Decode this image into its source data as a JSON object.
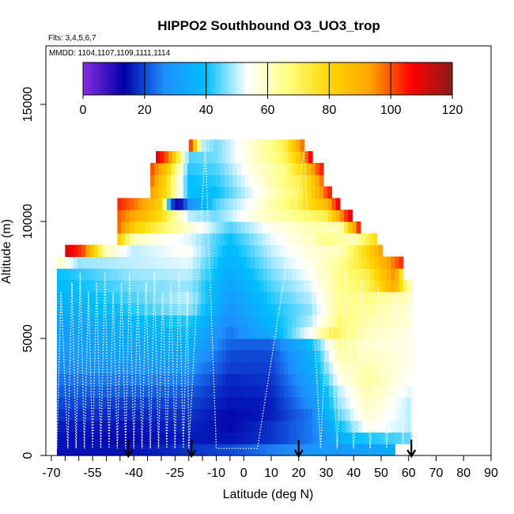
{
  "chart_data": {
    "type": "heatmap",
    "title": "HIPPO2 Southbound O3_UO3_trop",
    "subtitle_flights": "Flts: 3,4,5,6,7",
    "subtitle_dates": "MMDD: 1104,1107,1109,1111,1114",
    "xlabel": "Latitude (deg N)",
    "ylabel": "Altitude (m)",
    "xlim": [
      -72,
      90
    ],
    "ylim": [
      0,
      17500
    ],
    "x_ticks": [
      -70,
      -55,
      -40,
      -25,
      -10,
      0,
      10,
      20,
      30,
      40,
      50,
      60,
      70,
      80,
      90
    ],
    "x_tick_labels": [
      "-70",
      "-55",
      "-40",
      "-25",
      "-10",
      "0",
      "10",
      "20",
      "30",
      "40",
      "50",
      "60",
      "70",
      "80",
      "90"
    ],
    "x_minor_ticks": [
      -65,
      -60,
      -50,
      -45,
      -35,
      -30,
      -20,
      -15,
      -5
    ],
    "y_ticks": [
      0,
      5000,
      10000,
      15000
    ],
    "y_tick_labels": [
      "0",
      "5000",
      "10000",
      "15000"
    ],
    "colorbar": {
      "range": [
        0,
        120
      ],
      "ticks": [
        0,
        20,
        40,
        60,
        80,
        100,
        120
      ],
      "tick_labels": [
        "0",
        "20",
        "40",
        "60",
        "80",
        "100",
        "120"
      ],
      "colors": [
        "#8a2be2",
        "#0000aa",
        "#1e90ff",
        "#00bfff",
        "#ffffff",
        "#ffff80",
        "#ffd700",
        "#ffa500",
        "#ff0000",
        "#8b1a1a"
      ]
    },
    "arrow_latitudes": [
      -42,
      -19,
      20,
      61
    ],
    "layer_height_m": 500,
    "layers": [
      {
        "alt": 0,
        "lat_min": -68,
        "lat_max": 55,
        "ctrl": [
          [
            -68,
            15
          ],
          [
            -40,
            15
          ],
          [
            -20,
            18
          ],
          [
            -5,
            20
          ],
          [
            10,
            25
          ],
          [
            25,
            28
          ],
          [
            40,
            30
          ],
          [
            55,
            35
          ]
        ]
      },
      {
        "alt": 500,
        "lat_min": -68,
        "lat_max": 60,
        "ctrl": [
          [
            -68,
            15
          ],
          [
            -40,
            14
          ],
          [
            -20,
            16
          ],
          [
            -5,
            15
          ],
          [
            10,
            18
          ],
          [
            25,
            25
          ],
          [
            40,
            40
          ],
          [
            60,
            45
          ]
        ]
      },
      {
        "alt": 1000,
        "lat_min": -68,
        "lat_max": 60,
        "ctrl": [
          [
            -68,
            16
          ],
          [
            -40,
            15
          ],
          [
            -20,
            17
          ],
          [
            -5,
            14
          ],
          [
            10,
            18
          ],
          [
            25,
            25
          ],
          [
            35,
            40
          ],
          [
            45,
            55
          ],
          [
            60,
            50
          ]
        ]
      },
      {
        "alt": 1500,
        "lat_min": -68,
        "lat_max": 60,
        "ctrl": [
          [
            -68,
            18
          ],
          [
            -40,
            17
          ],
          [
            -20,
            18
          ],
          [
            -5,
            14
          ],
          [
            10,
            16
          ],
          [
            25,
            25
          ],
          [
            35,
            45
          ],
          [
            45,
            58
          ],
          [
            60,
            50
          ]
        ]
      },
      {
        "alt": 2000,
        "lat_min": -68,
        "lat_max": 60,
        "ctrl": [
          [
            -68,
            20
          ],
          [
            -40,
            19
          ],
          [
            -20,
            20
          ],
          [
            -5,
            15
          ],
          [
            10,
            16
          ],
          [
            25,
            28
          ],
          [
            35,
            48
          ],
          [
            45,
            60
          ],
          [
            60,
            50
          ]
        ]
      },
      {
        "alt": 2500,
        "lat_min": -68,
        "lat_max": 60,
        "ctrl": [
          [
            -68,
            22
          ],
          [
            -40,
            22
          ],
          [
            -20,
            22
          ],
          [
            -5,
            16
          ],
          [
            10,
            17
          ],
          [
            25,
            30
          ],
          [
            35,
            50
          ],
          [
            45,
            62
          ],
          [
            60,
            52
          ]
        ]
      },
      {
        "alt": 3000,
        "lat_min": -68,
        "lat_max": 60,
        "ctrl": [
          [
            -68,
            24
          ],
          [
            -40,
            25
          ],
          [
            -20,
            25
          ],
          [
            -5,
            17
          ],
          [
            10,
            18
          ],
          [
            25,
            32
          ],
          [
            35,
            55
          ],
          [
            45,
            64
          ],
          [
            60,
            54
          ]
        ]
      },
      {
        "alt": 3500,
        "lat_min": -68,
        "lat_max": 60,
        "ctrl": [
          [
            -68,
            26
          ],
          [
            -40,
            28
          ],
          [
            -20,
            28
          ],
          [
            -5,
            19
          ],
          [
            10,
            19
          ],
          [
            25,
            35
          ],
          [
            35,
            58
          ],
          [
            45,
            62
          ],
          [
            60,
            55
          ]
        ]
      },
      {
        "alt": 4000,
        "lat_min": -68,
        "lat_max": 60,
        "ctrl": [
          [
            -68,
            28
          ],
          [
            -40,
            32
          ],
          [
            -20,
            32
          ],
          [
            -5,
            20
          ],
          [
            10,
            20
          ],
          [
            25,
            36
          ],
          [
            35,
            62
          ],
          [
            45,
            60
          ],
          [
            60,
            56
          ]
        ]
      },
      {
        "alt": 4500,
        "lat_min": -68,
        "lat_max": 60,
        "ctrl": [
          [
            -68,
            30
          ],
          [
            -40,
            34
          ],
          [
            -20,
            35
          ],
          [
            -5,
            22
          ],
          [
            10,
            22
          ],
          [
            25,
            40
          ],
          [
            35,
            64
          ],
          [
            45,
            58
          ],
          [
            60,
            56
          ]
        ]
      },
      {
        "alt": 5000,
        "lat_min": -68,
        "lat_max": 60,
        "ctrl": [
          [
            -68,
            30
          ],
          [
            -40,
            36
          ],
          [
            -20,
            38
          ],
          [
            -5,
            24
          ],
          [
            10,
            35
          ],
          [
            25,
            55
          ],
          [
            32,
            72
          ],
          [
            45,
            60
          ],
          [
            60,
            56
          ]
        ]
      },
      {
        "alt": 5500,
        "lat_min": -68,
        "lat_max": 60,
        "ctrl": [
          [
            -68,
            32
          ],
          [
            -40,
            38
          ],
          [
            -20,
            42
          ],
          [
            -5,
            26
          ],
          [
            10,
            38
          ],
          [
            25,
            50
          ],
          [
            35,
            68
          ],
          [
            45,
            62
          ],
          [
            60,
            58
          ]
        ]
      },
      {
        "alt": 6000,
        "lat_min": -68,
        "lat_max": 60,
        "ctrl": [
          [
            -68,
            34
          ],
          [
            -40,
            42
          ],
          [
            -20,
            48
          ],
          [
            -5,
            28
          ],
          [
            10,
            40
          ],
          [
            25,
            48
          ],
          [
            35,
            66
          ],
          [
            45,
            64
          ],
          [
            60,
            58
          ]
        ]
      },
      {
        "alt": 6500,
        "lat_min": -68,
        "lat_max": 60,
        "ctrl": [
          [
            -68,
            36
          ],
          [
            -40,
            44
          ],
          [
            -20,
            50
          ],
          [
            -5,
            30
          ],
          [
            10,
            42
          ],
          [
            25,
            50
          ],
          [
            35,
            65
          ],
          [
            45,
            66
          ],
          [
            60,
            60
          ]
        ]
      },
      {
        "alt": 7000,
        "lat_min": -68,
        "lat_max": 60,
        "ctrl": [
          [
            -68,
            38
          ],
          [
            -40,
            46
          ],
          [
            -20,
            48
          ],
          [
            -5,
            32
          ],
          [
            10,
            44
          ],
          [
            25,
            52
          ],
          [
            35,
            66
          ],
          [
            45,
            70
          ],
          [
            55,
            92
          ],
          [
            60,
            62
          ]
        ]
      },
      {
        "alt": 7500,
        "lat_min": -68,
        "lat_max": 58,
        "ctrl": [
          [
            -68,
            40
          ],
          [
            -40,
            48
          ],
          [
            -20,
            50
          ],
          [
            -5,
            34
          ],
          [
            10,
            46
          ],
          [
            25,
            54
          ],
          [
            35,
            66
          ],
          [
            45,
            72
          ],
          [
            55,
            96
          ],
          [
            58,
            70
          ]
        ]
      },
      {
        "alt": 8000,
        "lat_min": -68,
        "lat_max": 58,
        "ctrl": [
          [
            -68,
            60
          ],
          [
            -60,
            48
          ],
          [
            -40,
            50
          ],
          [
            -20,
            52
          ],
          [
            -5,
            36
          ],
          [
            10,
            48
          ],
          [
            25,
            56
          ],
          [
            35,
            64
          ],
          [
            45,
            78
          ],
          [
            58,
            104
          ]
        ]
      },
      {
        "alt": 8500,
        "lat_min": -65,
        "lat_max": 50,
        "ctrl": [
          [
            -65,
            112
          ],
          [
            -58,
            100
          ],
          [
            -50,
            60
          ],
          [
            -40,
            50
          ],
          [
            -20,
            54
          ],
          [
            -5,
            38
          ],
          [
            10,
            50
          ],
          [
            25,
            58
          ],
          [
            35,
            60
          ],
          [
            45,
            80
          ],
          [
            50,
            92
          ]
        ]
      },
      {
        "alt": 9000,
        "lat_min": -46,
        "lat_max": 48,
        "ctrl": [
          [
            -46,
            85
          ],
          [
            -40,
            60
          ],
          [
            -30,
            55
          ],
          [
            -20,
            52
          ],
          [
            -5,
            40
          ],
          [
            10,
            52
          ],
          [
            25,
            60
          ],
          [
            30,
            66
          ],
          [
            40,
            60
          ],
          [
            48,
            78
          ]
        ]
      },
      {
        "alt": 9500,
        "lat_min": -46,
        "lat_max": 42,
        "ctrl": [
          [
            -46,
            100
          ],
          [
            -40,
            82
          ],
          [
            -30,
            70
          ],
          [
            -20,
            58
          ],
          [
            -5,
            44
          ],
          [
            10,
            55
          ],
          [
            25,
            62
          ],
          [
            35,
            60
          ],
          [
            42,
            104
          ]
        ]
      },
      {
        "alt": 10000,
        "lat_min": -46,
        "lat_max": 39,
        "ctrl": [
          [
            -46,
            100
          ],
          [
            -40,
            92
          ],
          [
            -30,
            78
          ],
          [
            -20,
            50
          ],
          [
            -10,
            46
          ],
          [
            5,
            58
          ],
          [
            20,
            66
          ],
          [
            30,
            72
          ],
          [
            39,
            110
          ]
        ]
      },
      {
        "alt": 10500,
        "lat_min": -46,
        "lat_max": 35,
        "ctrl": [
          [
            -46,
            104
          ],
          [
            -40,
            98
          ],
          [
            -30,
            82
          ],
          [
            -25,
            8
          ],
          [
            -20,
            26
          ],
          [
            -10,
            44
          ],
          [
            5,
            56
          ],
          [
            20,
            72
          ],
          [
            30,
            88
          ],
          [
            35,
            110
          ]
        ]
      },
      {
        "alt": 11000,
        "lat_min": -34,
        "lat_max": 31,
        "ctrl": [
          [
            -34,
            95
          ],
          [
            -28,
            78
          ],
          [
            -20,
            40
          ],
          [
            -10,
            40
          ],
          [
            5,
            54
          ],
          [
            20,
            70
          ],
          [
            25,
            82
          ],
          [
            31,
            104
          ]
        ]
      },
      {
        "alt": 11500,
        "lat_min": -34,
        "lat_max": 29,
        "ctrl": [
          [
            -34,
            100
          ],
          [
            -28,
            78
          ],
          [
            -20,
            40
          ],
          [
            -10,
            42
          ],
          [
            5,
            56
          ],
          [
            20,
            72
          ],
          [
            24,
            80
          ],
          [
            29,
            100
          ]
        ]
      },
      {
        "alt": 12000,
        "lat_min": -34,
        "lat_max": 28,
        "ctrl": [
          [
            -34,
            102
          ],
          [
            -28,
            85
          ],
          [
            -20,
            42
          ],
          [
            -10,
            44
          ],
          [
            5,
            58
          ],
          [
            15,
            66
          ],
          [
            22,
            82
          ],
          [
            28,
            104
          ]
        ]
      },
      {
        "alt": 12500,
        "lat_min": -32,
        "lat_max": 25,
        "ctrl": [
          [
            -32,
            112
          ],
          [
            -27,
            96
          ],
          [
            -20,
            44
          ],
          [
            -10,
            46
          ],
          [
            5,
            60
          ],
          [
            15,
            70
          ],
          [
            20,
            84
          ],
          [
            25,
            110
          ]
        ]
      },
      {
        "alt": 13000,
        "lat_min": -20,
        "lat_max": 22,
        "ctrl": [
          [
            -20,
            110
          ],
          [
            -15,
            50
          ],
          [
            -10,
            46
          ],
          [
            5,
            60
          ],
          [
            15,
            72
          ],
          [
            22,
            100
          ]
        ]
      }
    ]
  }
}
